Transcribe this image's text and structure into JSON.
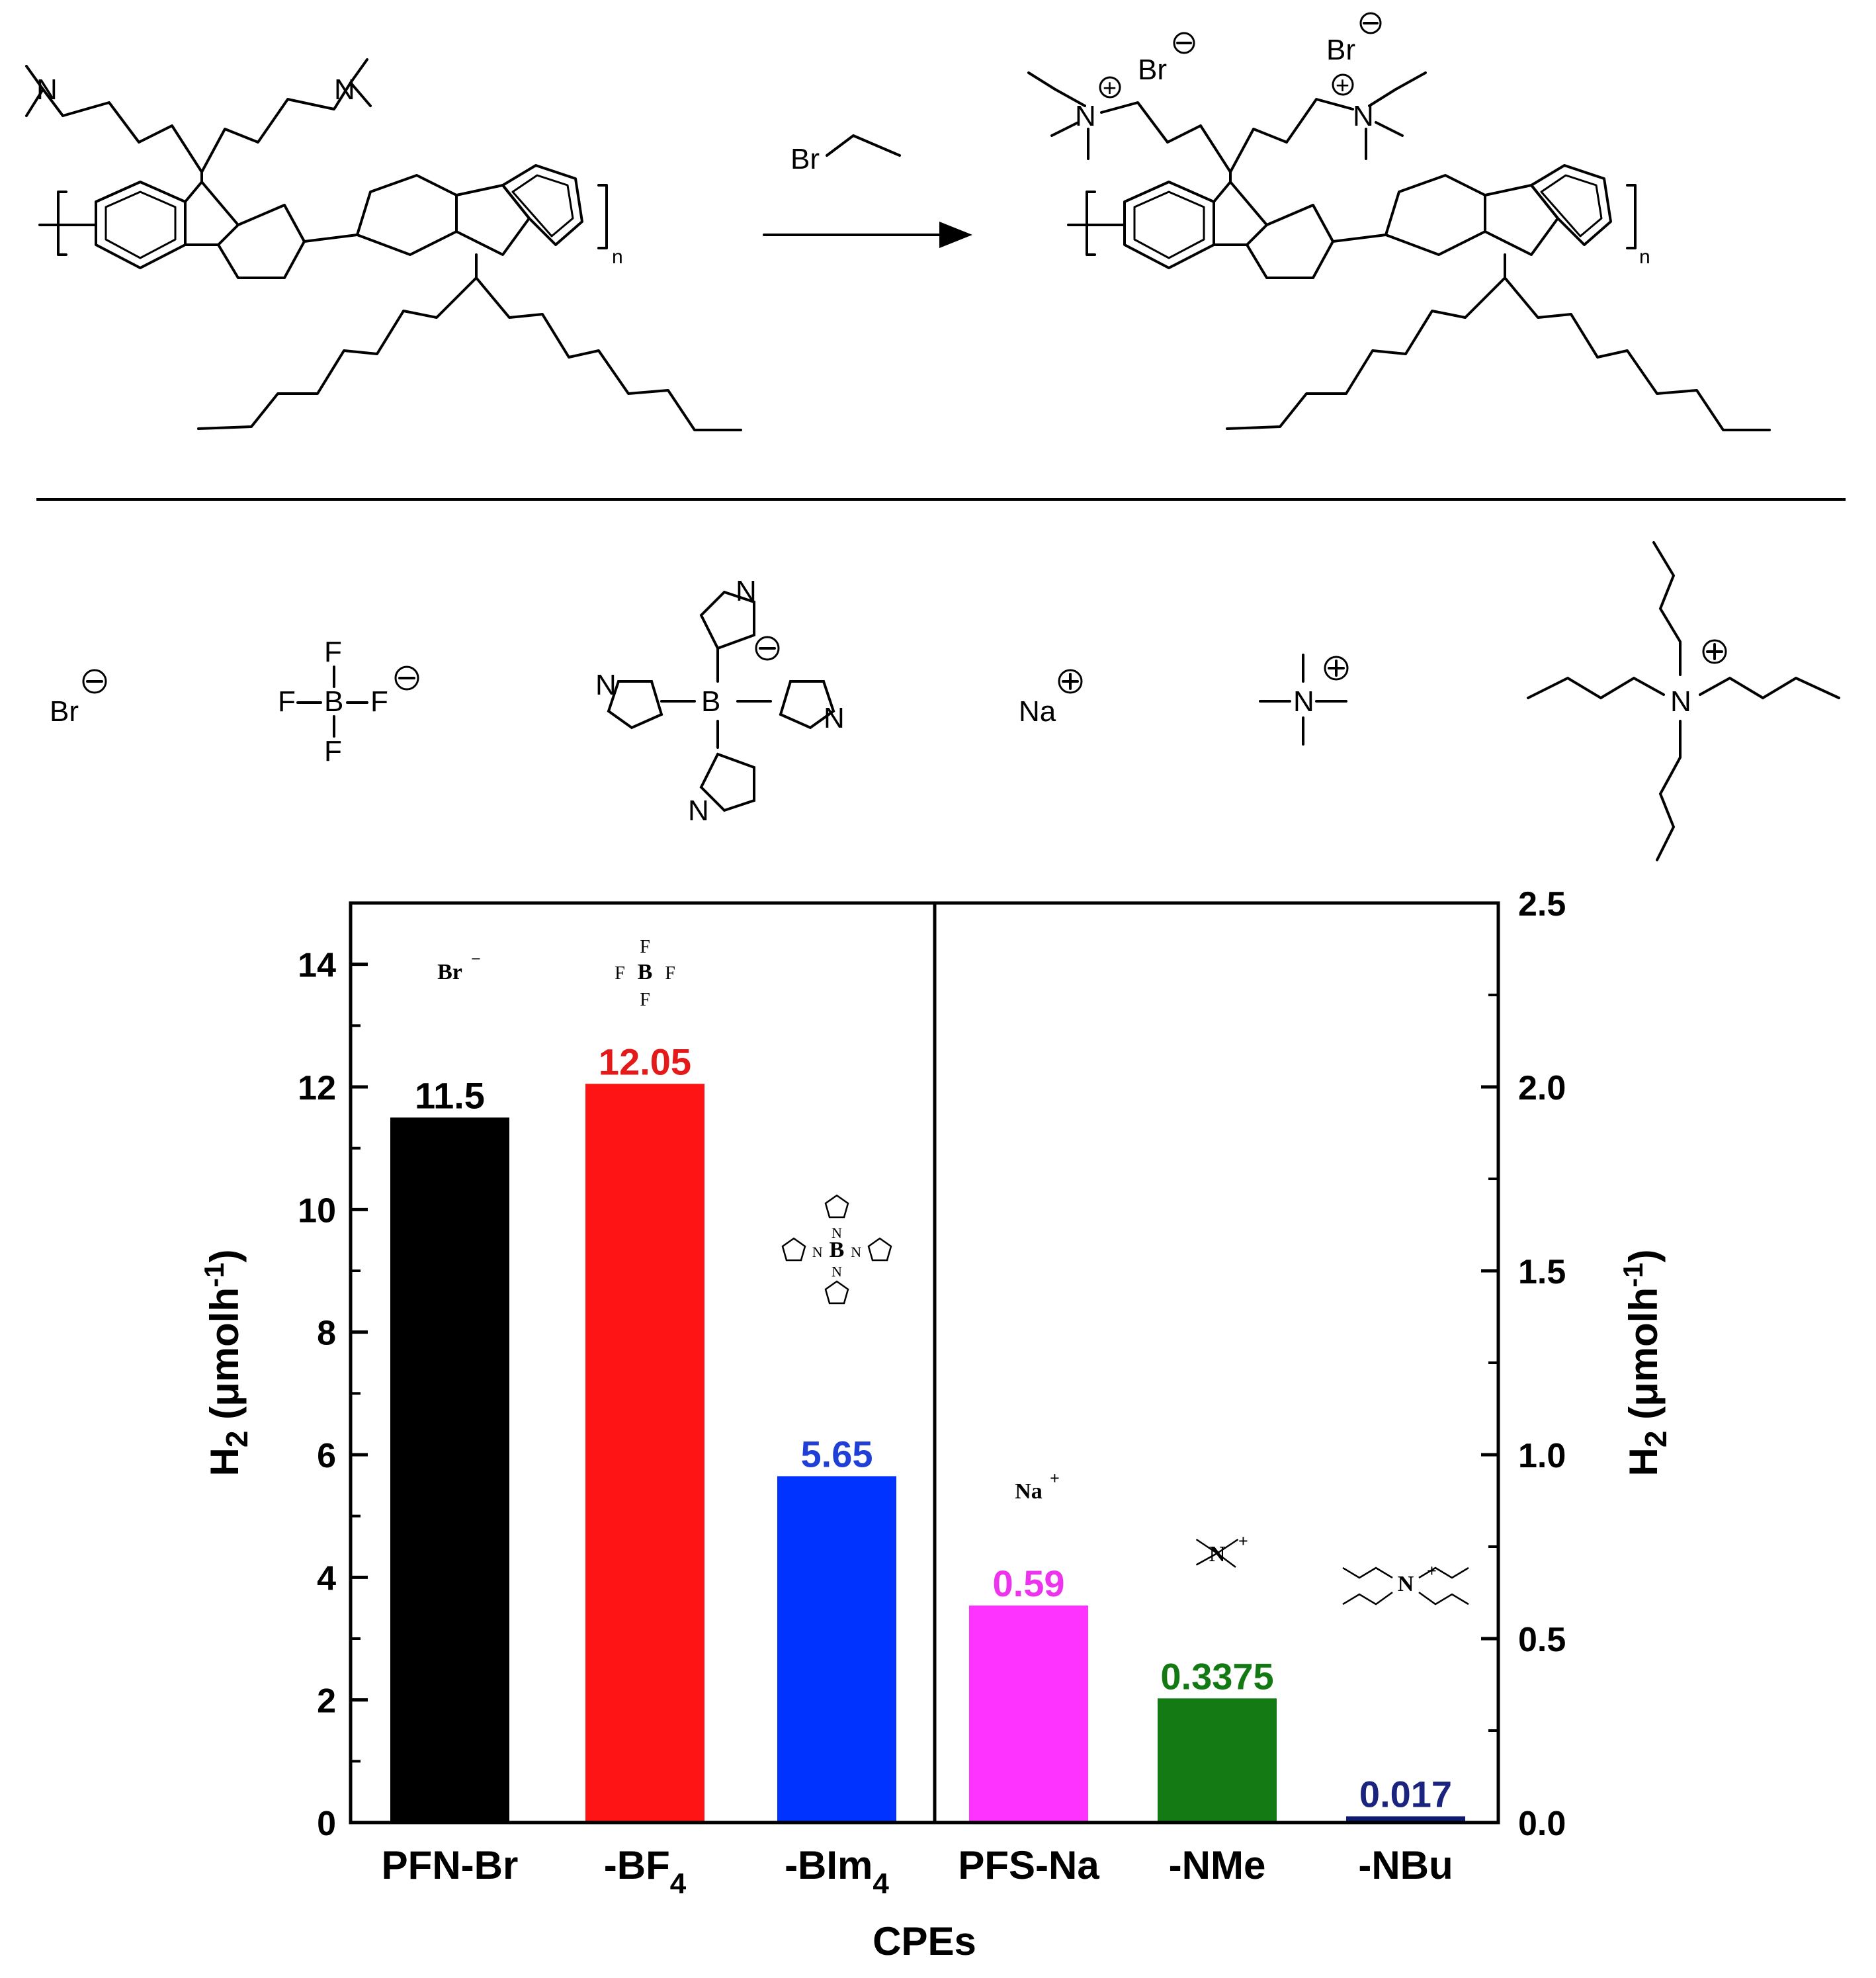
{
  "scheme": {
    "reagent": "Br",
    "subscript_n": "n",
    "label_N": "N",
    "label_Br": "Br"
  },
  "counter_ions": [
    {
      "name": "bromide",
      "text": "Br"
    },
    {
      "name": "tetrafluoroborate",
      "atoms": [
        "F",
        "F",
        "B",
        "F",
        "F"
      ]
    },
    {
      "name": "tetraimidazolylborate",
      "atoms": [
        "N",
        "B"
      ]
    },
    {
      "name": "sodium",
      "text": "Na"
    },
    {
      "name": "tetramethylammonium",
      "atoms": [
        "N"
      ]
    },
    {
      "name": "tetrabutylammonium",
      "atoms": [
        "N"
      ]
    }
  ],
  "chart_data": {
    "type": "bar",
    "xlabel": "CPEs",
    "ylabel_left": "H2 (μmolh-1)",
    "ylabel_right": "H2 (μmolh-1)",
    "ylim_left": [
      0,
      15
    ],
    "ylim_right": [
      0,
      2.5
    ],
    "yticks_left": [
      "0",
      "2",
      "4",
      "6",
      "8",
      "10",
      "12",
      "14"
    ],
    "yticks_right": [
      "0.0",
      "0.5",
      "1.0",
      "1.5",
      "2.0",
      "2.5"
    ],
    "grid": false,
    "legend": "none",
    "divider_between": [
      "-BIm4",
      "PFS-Na"
    ],
    "bars": [
      {
        "category": "PFN-Br",
        "value": 11.5,
        "label": "11.5",
        "axis": "left",
        "color": "#000000",
        "label_color": "#000000",
        "ion_label": "Br",
        "ion_sup": "−"
      },
      {
        "category": "-BF4",
        "value": 12.05,
        "label": "12.05",
        "axis": "left",
        "color": "#fe1414",
        "label_color": "#e41a1a",
        "ion_label": "B",
        "ion_atoms": [
          "F",
          "F",
          "F",
          "F"
        ]
      },
      {
        "category": "-BIm4",
        "value": 5.65,
        "label": "5.65",
        "axis": "left",
        "color": "#0033ff",
        "label_color": "#1f3fd6",
        "ion_label": "B",
        "ion_atoms": [
          "N"
        ]
      },
      {
        "category": "PFS-Na",
        "value": 0.59,
        "label": "0.59",
        "axis": "right",
        "color": "#ff33ff",
        "label_color": "#ee33ee",
        "ion_label": "Na",
        "ion_sup": "+"
      },
      {
        "category": "-NMe",
        "value": 0.3375,
        "label": "0.3375",
        "axis": "right",
        "color": "#147a14",
        "label_color": "#137a13",
        "ion_label": "N",
        "ion_sup": "+"
      },
      {
        "category": "-NBu",
        "value": 0.017,
        "label": "0.017",
        "axis": "right",
        "color": "#0d1a6e",
        "label_color": "#1a237e",
        "ion_label": "N",
        "ion_sup": "+"
      }
    ]
  }
}
